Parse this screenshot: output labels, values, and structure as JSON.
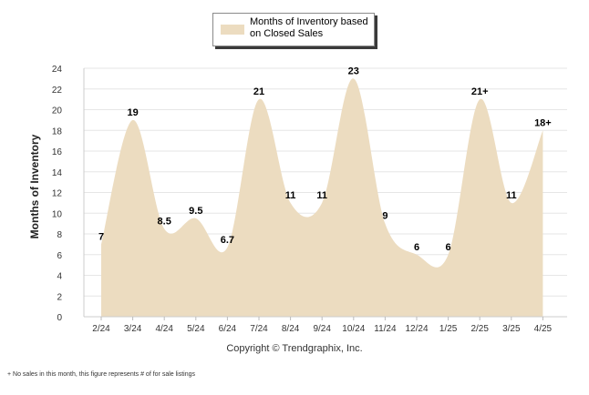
{
  "chart_data": {
    "type": "area",
    "categories": [
      "2/24",
      "3/24",
      "4/24",
      "5/24",
      "6/24",
      "7/24",
      "8/24",
      "9/24",
      "10/24",
      "11/24",
      "12/24",
      "1/25",
      "2/25",
      "3/25",
      "4/25"
    ],
    "series": [
      {
        "name": "Months of Inventory based on Closed Sales",
        "values": [
          7,
          19,
          8.5,
          9.5,
          6.7,
          21,
          11,
          11,
          23,
          9,
          6,
          6,
          21,
          11,
          18
        ],
        "labels": [
          "7",
          "19",
          "8.5",
          "9.5",
          "6.7",
          "21",
          "11",
          "11",
          "23",
          "9",
          "6",
          "6",
          "21+",
          "11",
          "18+"
        ],
        "color": "#ecdcc0"
      }
    ],
    "title": "",
    "xlabel": "",
    "ylabel": "Months of Inventory",
    "ylim": [
      0,
      24
    ],
    "yticks": [
      0,
      2,
      4,
      6,
      8,
      10,
      12,
      14,
      16,
      18,
      20,
      22,
      24
    ],
    "grid": true,
    "legend": "top-center"
  },
  "legend": {
    "label": "Months of Inventory based on Closed Sales"
  },
  "copyright": "Copyright © Trendgraphix, Inc.",
  "footnote": "+ No sales in this month, this figure represents # of for sale listings"
}
